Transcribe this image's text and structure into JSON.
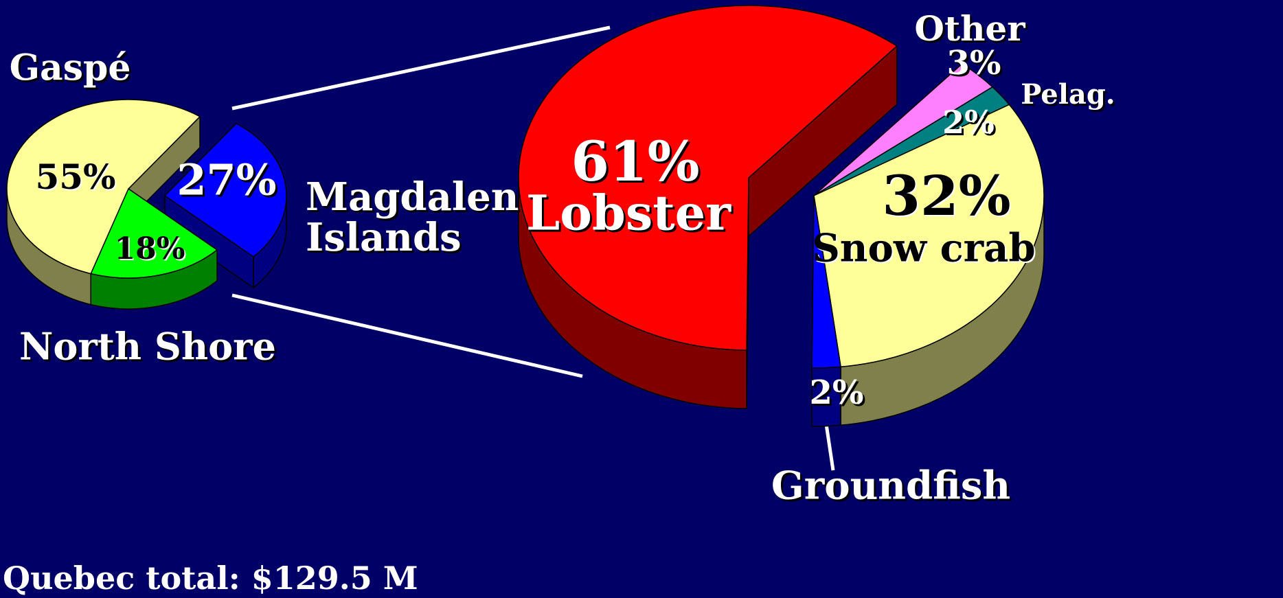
{
  "title": "Quebec total: $129.5 M",
  "chart_data": [
    {
      "type": "pie",
      "categories": [
        "Gaspé",
        "Magdalen Islands",
        "North Shore"
      ],
      "values": [
        55,
        27,
        18
      ],
      "value_labels": [
        "55%",
        "27%",
        "18%"
      ],
      "colors": [
        "#ffff99",
        "#0000ff",
        "#00ff00"
      ]
    },
    {
      "type": "pie",
      "categories": [
        "Lobster",
        "Other",
        "Pelag.",
        "Snow crab",
        "Groundfish"
      ],
      "values": [
        61,
        3,
        2,
        32,
        2
      ],
      "value_labels": [
        "61%",
        "3%",
        "2%",
        "32%",
        "2%"
      ],
      "colors": [
        "#ff0000",
        "#ff80ff",
        "#008080",
        "#ffff99",
        "#0000ff"
      ]
    }
  ]
}
